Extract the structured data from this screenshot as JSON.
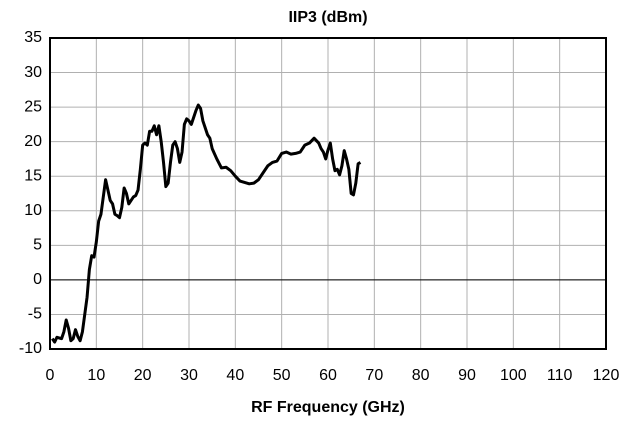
{
  "chart_data": {
    "type": "line",
    "title": "IIP3 (dBm)",
    "x_label": "RF Frequency (GHz)",
    "x": [
      0.5,
      1,
      1.5,
      2.5,
      3,
      3.5,
      4,
      4.5,
      5,
      5.5,
      6,
      6.5,
      7,
      7.5,
      8,
      8.5,
      9,
      9.5,
      10,
      10.5,
      11,
      11.5,
      12,
      12.5,
      13,
      13.5,
      14,
      14.5,
      15,
      15.5,
      16,
      16.5,
      17,
      17.5,
      18,
      18.5,
      19,
      19.5,
      20,
      20.5,
      21,
      21.5,
      22,
      22.5,
      23,
      23.5,
      24,
      24.5,
      25,
      25.5,
      26,
      26.5,
      27,
      27.5,
      28,
      28.5,
      29,
      29.5,
      30,
      30.5,
      31,
      31.5,
      32,
      32.5,
      33,
      33.5,
      34,
      34.5,
      35,
      36,
      37,
      38,
      39,
      40,
      41,
      42,
      43,
      44,
      45,
      46,
      47,
      48,
      49,
      50,
      51,
      52,
      53,
      54,
      55,
      56,
      57,
      58,
      58.5,
      59,
      59.5,
      60,
      60.5,
      61,
      61.5,
      62,
      62.5,
      63,
      63.5,
      64,
      64.5,
      65,
      65.5,
      66,
      66.5,
      67
    ],
    "series": [
      {
        "name": "IIP3",
        "color": "#000000",
        "values": [
          -8.5,
          -9,
          -8.3,
          -8.5,
          -7.5,
          -5.8,
          -7,
          -8.8,
          -8.5,
          -7.2,
          -8.2,
          -8.8,
          -7.5,
          -5,
          -2.5,
          1.5,
          3.5,
          3.3,
          5.5,
          8.5,
          9.5,
          12,
          14.5,
          13,
          11.5,
          11,
          9.5,
          9.3,
          9,
          10.5,
          13.3,
          12.5,
          11,
          11.5,
          12,
          12.2,
          13,
          16,
          19.5,
          19.8,
          19.5,
          21.5,
          21.5,
          22.3,
          21,
          22.3,
          20,
          17,
          13.5,
          14,
          17,
          19.5,
          20,
          19,
          17,
          18.5,
          22.5,
          23.3,
          23,
          22.5,
          23.5,
          24.5,
          25.3,
          24.8,
          23,
          22,
          21,
          20.5,
          19,
          17.5,
          16.2,
          16.3,
          15.8,
          15,
          14.3,
          14.1,
          13.9,
          14,
          14.5,
          15.5,
          16.5,
          17,
          17.2,
          18.3,
          18.5,
          18.2,
          18.3,
          18.5,
          19.5,
          19.8,
          20.5,
          19.8,
          19,
          18.5,
          17.5,
          18.8,
          19.8,
          17.5,
          15.8,
          16,
          15.2,
          16.5,
          18.7,
          17.5,
          16,
          12.5,
          12.3,
          14,
          16.8,
          17
        ]
      }
    ],
    "xlim": [
      0,
      120
    ],
    "xticks": [
      0,
      10,
      20,
      30,
      40,
      50,
      60,
      70,
      80,
      90,
      100,
      110,
      120
    ],
    "ylim": [
      -10,
      35
    ],
    "yticks": [
      -10,
      -5,
      0,
      5,
      10,
      15,
      20,
      25,
      30,
      35
    ],
    "grid": true
  }
}
